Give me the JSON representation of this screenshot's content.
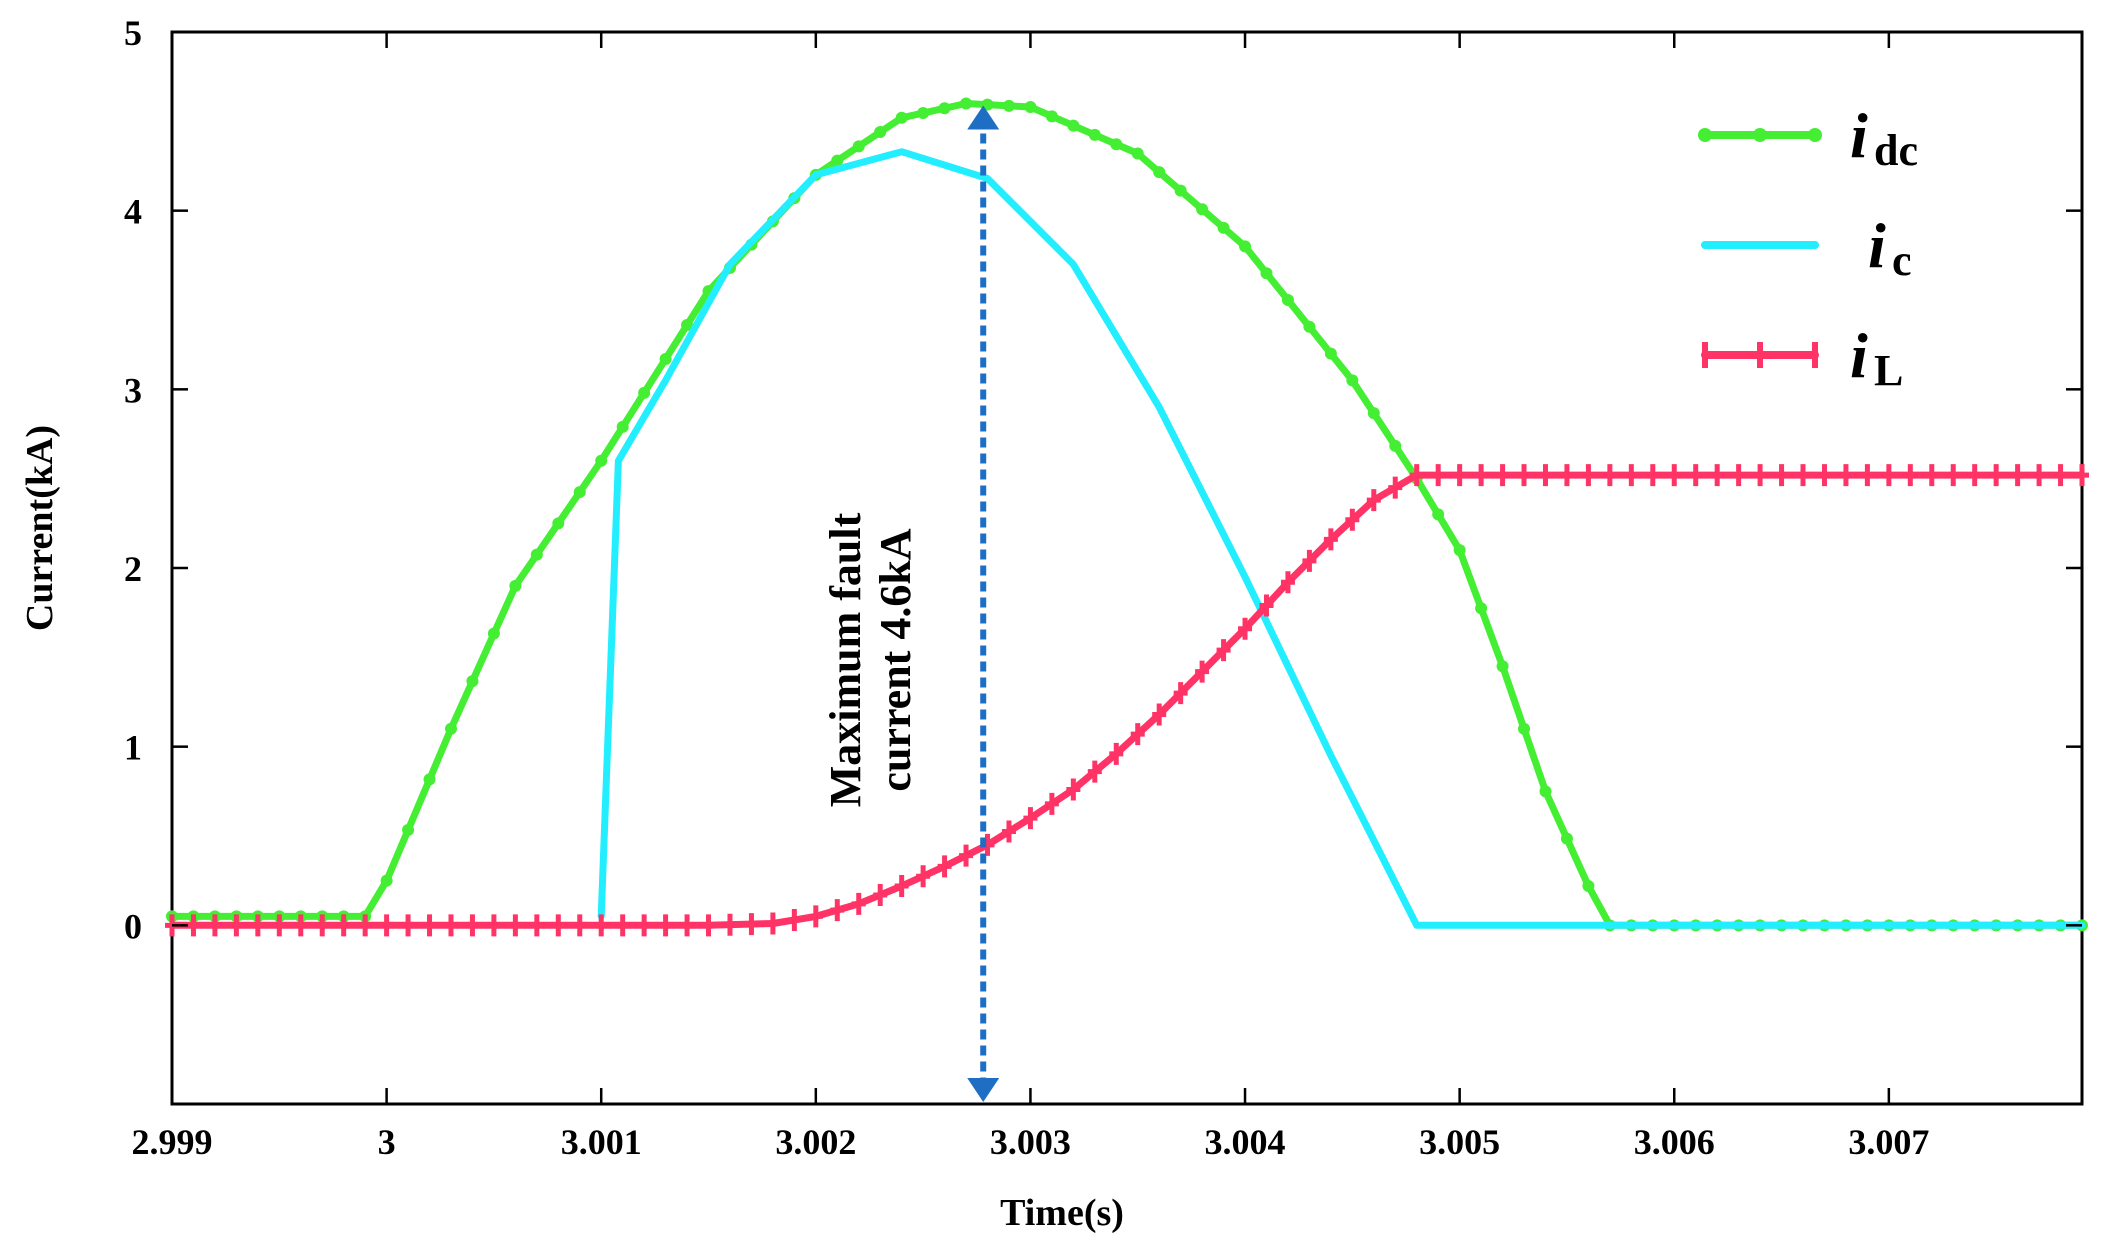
{
  "chart_data": {
    "type": "line",
    "title": "",
    "xlabel": "Time(s)",
    "ylabel": "Current(kA)",
    "xlim": [
      2.999,
      3.0079
    ],
    "ylim": [
      -1,
      5
    ],
    "x_ticks": [
      2.999,
      3.0,
      3.001,
      3.002,
      3.003,
      3.004,
      3.005,
      3.006,
      3.007
    ],
    "x_tick_labels": [
      "2.999",
      "3",
      "3.001",
      "3.002",
      "3.003",
      "3.004",
      "3.005",
      "3.006",
      "3.007"
    ],
    "y_ticks": [
      0,
      1,
      2,
      3,
      4,
      5
    ],
    "y_tick_labels": [
      "0",
      "1",
      "2",
      "3",
      "4",
      "5"
    ],
    "grid": false,
    "legend_position": "top-right",
    "series": [
      {
        "name": "idc",
        "label_main": "i",
        "label_sub": "dc",
        "color": "#44ee33",
        "marker": "dot",
        "x": [
          2.999,
          2.9999,
          3.0,
          3.0003,
          3.0006,
          3.001,
          3.0015,
          3.002,
          3.0024,
          3.0027,
          3.003,
          3.0035,
          3.004,
          3.0045,
          3.0048,
          3.005,
          3.0052,
          3.0054,
          3.0056,
          3.0057,
          3.006,
          3.0079
        ],
        "y": [
          0.05,
          0.05,
          0.25,
          1.1,
          1.9,
          2.6,
          3.55,
          4.2,
          4.52,
          4.6,
          4.58,
          4.32,
          3.8,
          3.05,
          2.5,
          2.1,
          1.45,
          0.75,
          0.22,
          0.0,
          0.0,
          0.0
        ]
      },
      {
        "name": "ic",
        "label_main": "i",
        "label_sub": "c",
        "color": "#22eeff",
        "marker": "none",
        "x": [
          3.001,
          3.00108,
          3.0013,
          3.0016,
          3.002,
          3.0024,
          3.0028,
          3.0032,
          3.0036,
          3.004,
          3.0044,
          3.0048,
          3.006,
          3.0079
        ],
        "y": [
          0.05,
          2.6,
          3.05,
          3.7,
          4.2,
          4.33,
          4.18,
          3.7,
          2.9,
          1.95,
          0.95,
          0.0,
          0.0,
          0.0
        ]
      },
      {
        "name": "iL",
        "label_main": "i",
        "label_sub": "L",
        "color": "#ff3366",
        "marker": "plus",
        "x": [
          2.999,
          3.0015,
          3.0018,
          3.002,
          3.0022,
          3.0024,
          3.0026,
          3.0028,
          3.003,
          3.0032,
          3.0034,
          3.0036,
          3.0038,
          3.004,
          3.0042,
          3.0044,
          3.0046,
          3.0048,
          3.006,
          3.0079
        ],
        "y": [
          0.0,
          0.0,
          0.01,
          0.05,
          0.12,
          0.22,
          0.33,
          0.45,
          0.6,
          0.76,
          0.96,
          1.18,
          1.42,
          1.66,
          1.92,
          2.16,
          2.38,
          2.52,
          2.52,
          2.52
        ]
      }
    ],
    "annotations": [
      {
        "type": "double-arrow",
        "color": "#1e6fc4",
        "x": 3.00278,
        "y_from": 4.6,
        "y_to": -1.0
      },
      {
        "type": "text",
        "lines": [
          "Maximum fault",
          "current 4.6kA"
        ],
        "rotation": "vertical"
      }
    ]
  }
}
